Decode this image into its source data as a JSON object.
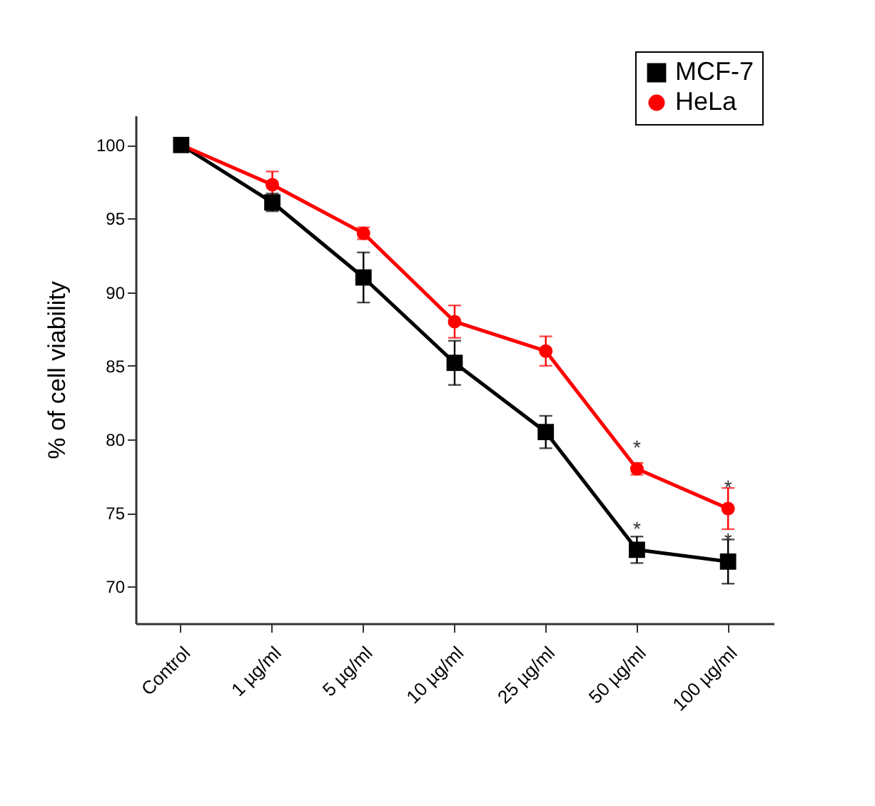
{
  "chart_data": {
    "type": "line",
    "ylabel": "% of cell viability",
    "categories": [
      "Control",
      "1 µg/ml",
      "5 µg/ml",
      "10 µg/ml",
      "25 µg/ml",
      "50 µg/ml",
      "100 µg/ml"
    ],
    "series": [
      {
        "name": "MCF-7",
        "color": "#000000",
        "marker": "square",
        "values": [
          100,
          96.1,
          91,
          85.2,
          80.5,
          72.5,
          71.7
        ],
        "errors": [
          null,
          0.6,
          1.7,
          1.5,
          1.1,
          0.9,
          1.5
        ]
      },
      {
        "name": "HeLa",
        "color": "#ff0000",
        "marker": "circle",
        "values": [
          100,
          97.3,
          94,
          88,
          86,
          78,
          75.3
        ],
        "errors": [
          null,
          0.9,
          0.4,
          1.1,
          1.0,
          0.4,
          1.4
        ]
      }
    ],
    "ylim": [
      67.5,
      102
    ],
    "yticks": [
      70,
      75,
      80,
      85,
      90,
      95,
      100
    ],
    "annotations": [
      {
        "text": "*",
        "x": "50 µg/ml",
        "y": 78
      },
      {
        "text": "*",
        "x": "100 µg/ml",
        "y": 75.3
      },
      {
        "text": "*",
        "x": "50 µg/ml",
        "y": 72.5
      },
      {
        "text": "*",
        "x": "100 µg/ml",
        "y": 71.7
      }
    ],
    "grid": false,
    "legend": "top right",
    "line_style": "solid"
  }
}
